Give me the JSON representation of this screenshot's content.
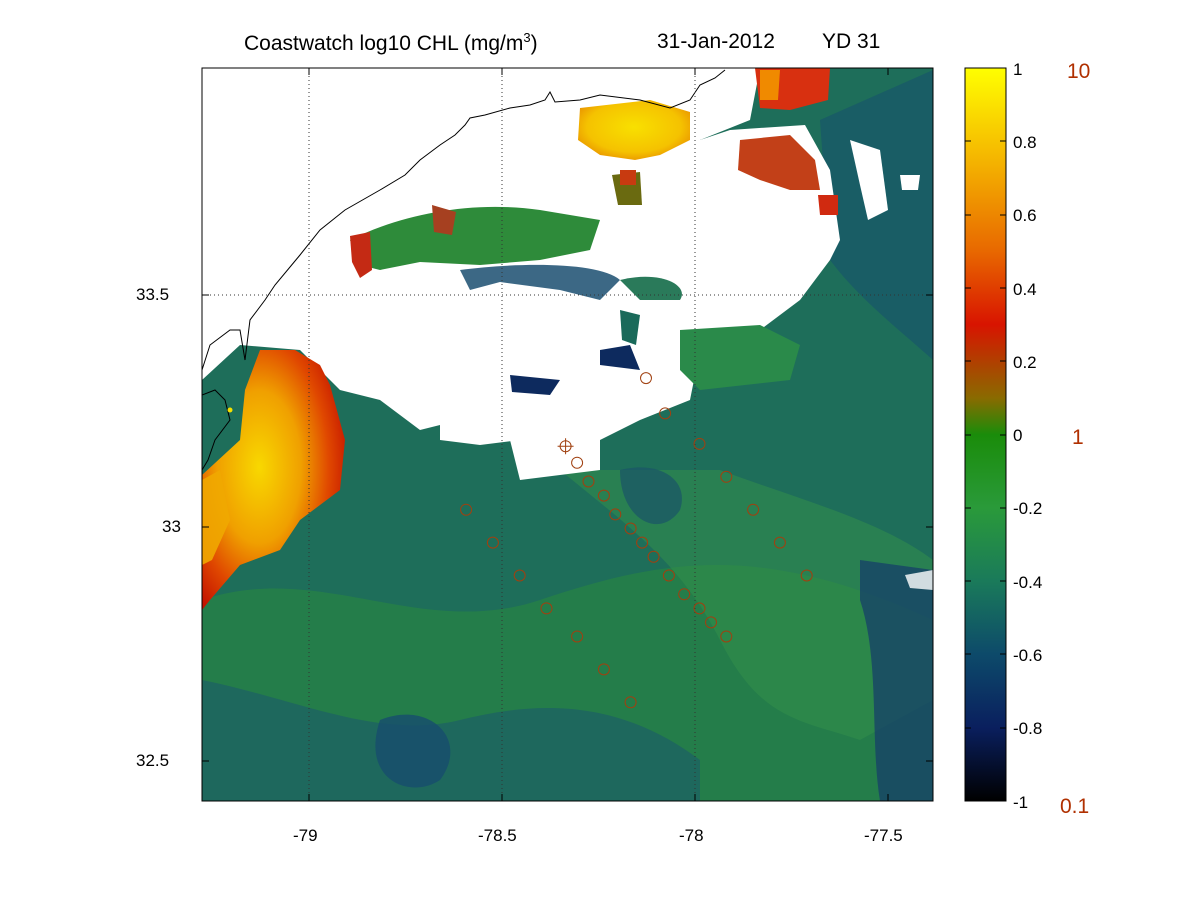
{
  "title": {
    "prefix": "Coastwatch  log10  CHL (mg/m",
    "sup": "3",
    "suffix": ")",
    "date": "31-Jan-2012",
    "yearday": "YD 31"
  },
  "axes": {
    "x_ticks": [
      "-79",
      "-78.5",
      "-78",
      "-77.5"
    ],
    "y_ticks": [
      "33.5",
      "33",
      "32.5"
    ],
    "x_range": [
      -79.28,
      -77.37
    ],
    "y_range": [
      32.42,
      33.98
    ],
    "grid": "dotted at 33.5 and -79, -78.5, -78"
  },
  "colorbar": {
    "range": [
      -1,
      1
    ],
    "ticks": [
      "1",
      "0.8",
      "0.6",
      "0.4",
      "0.2",
      "0",
      "-0.2",
      "-0.4",
      "-0.6",
      "-0.8",
      "-1"
    ],
    "right_labels": [
      "10",
      "1",
      "0.1"
    ],
    "right_label_color": "#b03000",
    "colors": [
      "#000000",
      "#0a1f5e",
      "#0d4a6a",
      "#1a7a5a",
      "#2a9a3a",
      "#1a8c0a",
      "#8a6a00",
      "#d81400",
      "#e86800",
      "#f5b800",
      "#ffff00"
    ]
  },
  "colors": {
    "background_water": "#1e6e5a",
    "cloud_mask": "#ffffff",
    "coastline": "#000000",
    "station_marker": "#a04010"
  },
  "stations": [
    {
      "lon": -78.12,
      "lat": 33.32
    },
    {
      "lon": -78.07,
      "lat": 33.245
    },
    {
      "lon": -78.33,
      "lat": 33.175,
      "marked": true
    },
    {
      "lon": -78.3,
      "lat": 33.14
    },
    {
      "lon": -78.27,
      "lat": 33.1
    },
    {
      "lon": -78.23,
      "lat": 33.07
    },
    {
      "lon": -78.2,
      "lat": 33.03
    },
    {
      "lon": -78.16,
      "lat": 33.0
    },
    {
      "lon": -78.13,
      "lat": 32.97
    },
    {
      "lon": -78.1,
      "lat": 32.94
    },
    {
      "lon": -78.06,
      "lat": 32.9
    },
    {
      "lon": -78.02,
      "lat": 32.86
    },
    {
      "lon": -77.98,
      "lat": 32.83
    },
    {
      "lon": -77.95,
      "lat": 32.8
    },
    {
      "lon": -77.91,
      "lat": 32.77
    },
    {
      "lon": -78.59,
      "lat": 33.04
    },
    {
      "lon": -78.52,
      "lat": 32.97
    },
    {
      "lon": -78.45,
      "lat": 32.9
    },
    {
      "lon": -78.38,
      "lat": 32.83
    },
    {
      "lon": -78.3,
      "lat": 32.77
    },
    {
      "lon": -78.23,
      "lat": 32.7
    },
    {
      "lon": -78.16,
      "lat": 32.63
    },
    {
      "lon": -77.98,
      "lat": 33.18
    },
    {
      "lon": -77.91,
      "lat": 33.11
    },
    {
      "lon": -77.84,
      "lat": 33.04
    },
    {
      "lon": -77.77,
      "lat": 32.97
    },
    {
      "lon": -77.7,
      "lat": 32.9
    }
  ]
}
